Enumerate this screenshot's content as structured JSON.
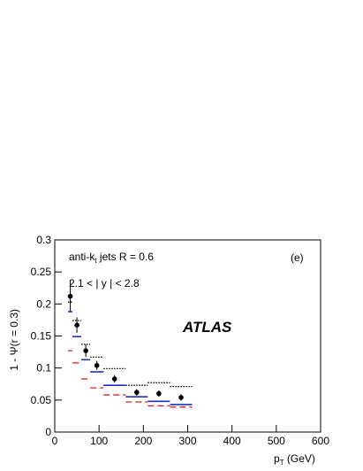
{
  "chart_data": {
    "type": "scatter",
    "x_label": {
      "text": "p",
      "sub": "T",
      "after": " (GeV)"
    },
    "y_label": "1 - Ψ(r = 0.3)",
    "annotations": [
      {
        "text": "anti-k",
        "sub": "t",
        "after": " jets R = 0.6"
      },
      "2.1 < | y | < 2.8",
      "(e)",
      "ATLAS"
    ],
    "x": [
      35,
      50,
      70,
      95,
      135,
      185,
      235,
      285
    ],
    "bins": [
      30,
      40,
      60,
      80,
      110,
      160,
      210,
      260,
      310
    ],
    "series": [
      {
        "color": "#000000",
        "style": "points",
        "values": [
          0.212,
          0.167,
          0.127,
          0.104,
          0.083,
          0.062,
          0.06,
          0.054
        ],
        "errors": [
          0.025,
          0.012,
          0.01,
          0.007,
          0.006,
          0.005,
          0.005,
          0.005
        ]
      },
      {
        "color": "#1f2fbf",
        "style": "solid",
        "values": [
          0.188,
          0.149,
          0.113,
          0.094,
          0.073,
          0.055,
          0.048,
          0.043
        ]
      },
      {
        "color": "#e02020",
        "style": "dashed",
        "values": [
          0.127,
          0.108,
          0.083,
          0.069,
          0.058,
          0.047,
          0.041,
          0.039
        ]
      },
      {
        "color": "#000000",
        "style": "dotted",
        "values": [
          0.203,
          0.174,
          0.137,
          0.117,
          0.099,
          0.073,
          0.077,
          0.071
        ]
      }
    ],
    "xlim": [
      0,
      600
    ],
    "xticks": [
      0,
      100,
      200,
      300,
      400,
      500,
      600
    ],
    "ylim": [
      0,
      0.3
    ],
    "yticks": [
      0,
      0.05,
      0.1,
      0.15,
      0.2,
      0.25,
      0.3
    ]
  }
}
